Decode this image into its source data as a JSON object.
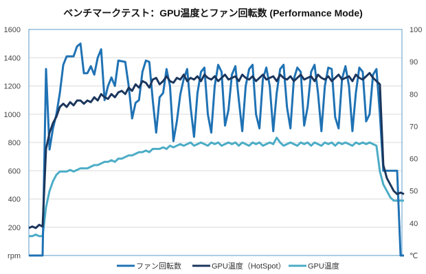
{
  "chart_data": {
    "type": "line",
    "title": "ベンチマークテスト：GPU温度とファン回転数 (Performance Mode)",
    "xlabel": "",
    "y_left": {
      "label": "rpm",
      "ylim": [
        0,
        1600
      ],
      "ticks": [
        "rpm",
        "200",
        "400",
        "600",
        "800",
        "1000",
        "1200",
        "1400",
        "1600"
      ]
    },
    "y_right": {
      "label": "℃",
      "ylim": [
        30,
        100
      ],
      "ticks": [
        "℃",
        "40",
        "50",
        "60",
        "70",
        "80",
        "90",
        "100"
      ]
    },
    "grid": true,
    "legend_position": "bottom",
    "series": [
      {
        "name": "ファン回転数",
        "axis": "left",
        "color": "#1f72b4",
        "values": [
          0,
          0,
          0,
          0,
          0,
          1320,
          750,
          900,
          1000,
          1150,
          1350,
          1410,
          1410,
          1410,
          1480,
          1500,
          1290,
          1290,
          1340,
          1280,
          1400,
          1460,
          1100,
          1200,
          1260,
          1200,
          1380,
          1375,
          1370,
          1200,
          970,
          1080,
          1100,
          1300,
          1380,
          1370,
          1100,
          870,
          1120,
          1150,
          1320,
          1200,
          810,
          950,
          1140,
          1250,
          1320,
          1050,
          840,
          1150,
          1300,
          1330,
          1000,
          870,
          1200,
          1350,
          1300,
          920,
          1030,
          1280,
          1340,
          1100,
          880,
          1200,
          1320,
          1350,
          1000,
          900,
          1250,
          1330,
          1200,
          880,
          1150,
          1320,
          1350,
          1050,
          900,
          1250,
          1330,
          1300,
          920,
          1050,
          1300,
          1350,
          1150,
          880,
          1200,
          1330,
          1320,
          980,
          900,
          1250,
          1340,
          1200,
          880,
          1150,
          1330,
          1300,
          950,
          1000,
          1280,
          1320,
          1000,
          600,
          600,
          600,
          600,
          600,
          0,
          0
        ]
      },
      {
        "name": "GPU温度（HotSpot）",
        "axis": "right",
        "color": "#1b365d",
        "values": [
          38.5,
          39,
          38.5,
          39.5,
          39,
          63,
          68,
          71,
          73,
          76,
          77,
          76,
          77.5,
          76.5,
          78,
          78,
          77,
          78,
          77.5,
          79,
          78,
          80,
          79,
          78.5,
          80,
          79,
          80.5,
          81,
          80,
          82,
          81,
          83,
          82,
          84,
          83.5,
          82,
          84.5,
          85,
          83,
          84,
          85.5,
          84,
          83.5,
          85,
          84.5,
          86,
          84,
          85,
          84.5,
          85.5,
          84,
          86,
          85,
          84.5,
          85.5,
          84,
          85,
          86,
          84.5,
          85,
          85.5,
          84,
          86,
          85,
          84.5,
          85.5,
          84,
          85,
          86,
          84.5,
          85,
          85.5,
          84,
          86,
          85,
          84.5,
          85.5,
          84,
          85,
          86,
          84.5,
          85,
          85.5,
          84,
          86,
          85,
          84.5,
          85.5,
          84,
          85,
          86,
          84.5,
          85,
          85.5,
          84,
          86,
          85,
          84.5,
          85.5,
          86.5,
          85,
          84,
          83,
          58,
          54,
          52,
          50,
          49,
          49.5,
          49
        ]
      },
      {
        "name": "GPU温度",
        "axis": "right",
        "color": "#4bacc6",
        "values": [
          36,
          36,
          36.5,
          36,
          36,
          45,
          50,
          53,
          55,
          56,
          56,
          56,
          56.5,
          56,
          56.5,
          57,
          57,
          57,
          57.5,
          58,
          58,
          58.5,
          59,
          59,
          59.5,
          59,
          60,
          60,
          60.5,
          61,
          61,
          61.5,
          62,
          62,
          62.5,
          62,
          63,
          63,
          63,
          63.5,
          63,
          64,
          63.5,
          64,
          64.5,
          64,
          64.5,
          65,
          64,
          64.5,
          65,
          64.5,
          64,
          65,
          64.5,
          65,
          64,
          64.5,
          65,
          64.5,
          65,
          64,
          65,
          64.5,
          64,
          65,
          64.5,
          65,
          64,
          64.5,
          65,
          64.5,
          66.5,
          65,
          64,
          64.5,
          65,
          64.5,
          64,
          65,
          64.5,
          65,
          64,
          65,
          64.5,
          64,
          65,
          64.5,
          65,
          64,
          65,
          64.5,
          65,
          64.5,
          64,
          65,
          64.5,
          65,
          64.5,
          65,
          64.5,
          64,
          56,
          52,
          50,
          48,
          47,
          47,
          47,
          47
        ]
      }
    ]
  }
}
